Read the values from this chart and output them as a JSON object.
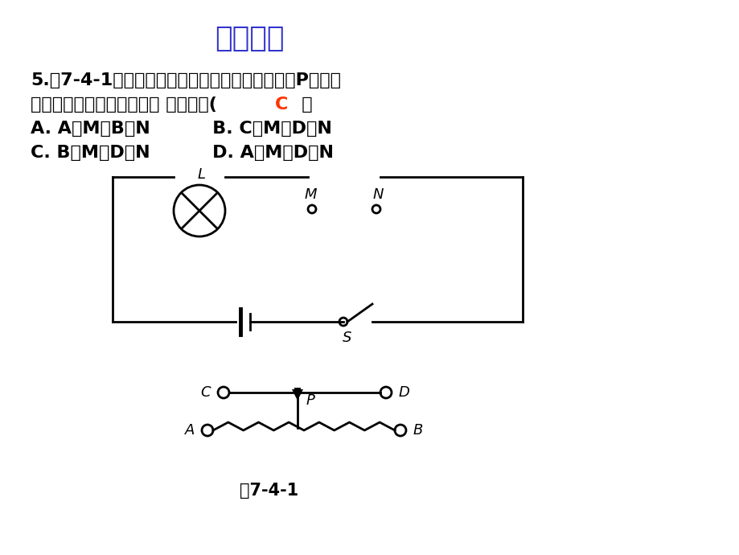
{
  "title": "课前热身",
  "title_color": "#3333CC",
  "title_fontsize": 26,
  "background_color": "#FFFFFF",
  "q_line1": "5.图7-4-1所示为控制电灯亮度的电路，要求滑片P右移时",
  "q_line2_pre": "电灯变亮，变阻器接入电路 的方式是(   ",
  "q_line2_C": "C",
  "q_line2_post": "   ）",
  "q_line3": "A. A接M，B接N          B. C接M，D接N",
  "q_line4": "C. B接M，D接N          D. A接M，D接N",
  "answer_C_color": "#FF3300",
  "caption": "图7-4-1",
  "text_color": "#000000",
  "circuit_color": "#000000",
  "lw": 2.0
}
